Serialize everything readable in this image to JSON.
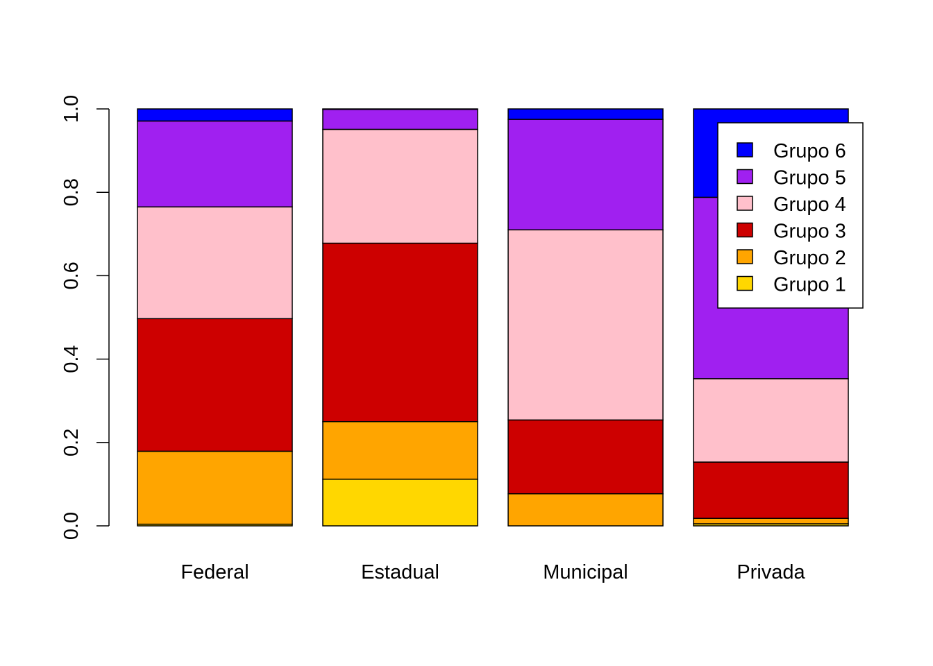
{
  "chart_data": {
    "type": "bar",
    "stacked": true,
    "categories": [
      "Federal",
      "Estadual",
      "Municipal",
      "Privada"
    ],
    "series": [
      {
        "name": "Grupo 1",
        "color": "#FFD700",
        "values": [
          0.004,
          0.112,
          0.0,
          0.005
        ]
      },
      {
        "name": "Grupo 2",
        "color": "#FFA500",
        "values": [
          0.175,
          0.138,
          0.077,
          0.013
        ]
      },
      {
        "name": "Grupo 3",
        "color": "#CD0000",
        "values": [
          0.318,
          0.428,
          0.177,
          0.135
        ]
      },
      {
        "name": "Grupo 4",
        "color": "#FFC0CB",
        "values": [
          0.268,
          0.273,
          0.456,
          0.2
        ]
      },
      {
        "name": "Grupo 5",
        "color": "#A020F0",
        "values": [
          0.206,
          0.048,
          0.265,
          0.435
        ]
      },
      {
        "name": "Grupo 6",
        "color": "#0000FF",
        "values": [
          0.029,
          0.001,
          0.025,
          0.212
        ]
      }
    ],
    "legend_order": [
      "Grupo 6",
      "Grupo 5",
      "Grupo 4",
      "Grupo 3",
      "Grupo 2",
      "Grupo 1"
    ],
    "legend_position": "top-right",
    "yticks": [
      "0.0",
      "0.2",
      "0.4",
      "0.6",
      "0.8",
      "1.0"
    ],
    "ylim": [
      0,
      1
    ],
    "title": "",
    "xlabel": "",
    "ylabel": "",
    "grid": false
  }
}
